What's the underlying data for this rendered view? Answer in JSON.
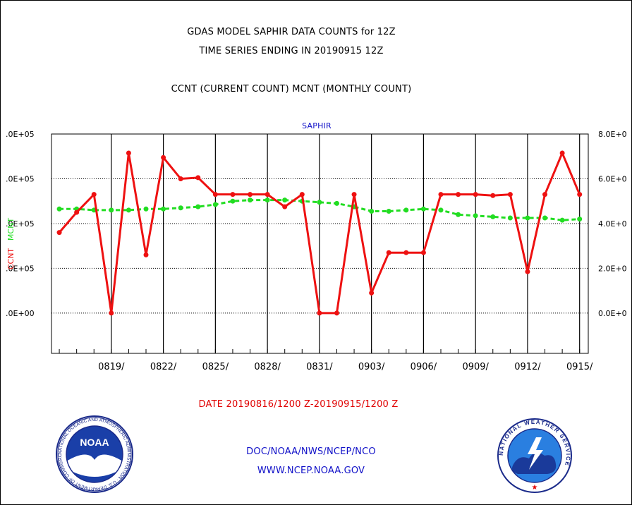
{
  "header": {
    "title_line1": "GDAS MODEL SAPHIR DATA COUNTS for 12Z",
    "title_line2": "TIME SERIES ENDING IN 20190915 12Z",
    "subtitle": "CCNT (CURRENT COUNT) MCNT (MONTHLY COUNT)",
    "panel_title": "SAPHIR"
  },
  "footer": {
    "date_range": "DATE 20190816/1200 Z-20190915/1200 Z",
    "org": "DOC/NOAA/NWS/NCEP/NCO",
    "url": "WWW.NCEP.NOAA.GOV",
    "left_logo_text": "NOAA",
    "left_logo_ring_text": "NATIONAL OCEANIC AND ATMOSPHERIC ADMINISTRATION · U.S. DEPARTMENT OF COMMERCE",
    "right_logo_ring_text": "NATIONAL WEATHER SERVICE"
  },
  "colors": {
    "ccnt": "#ee1111",
    "mcnt": "#22dd22",
    "text_blue": "#1010c8"
  },
  "chart_data": {
    "type": "line",
    "title": "SAPHIR",
    "ylabel_left_1": "CCNT",
    "ylabel_left_2": "MCNT",
    "ylim": [
      -180000,
      800000
    ],
    "yticks": [
      0,
      200000,
      400000,
      600000,
      800000
    ],
    "yticklabels_left": [
      ".0E+00",
      ".0E+05",
      ".0E+05",
      ".0E+05",
      ".0E+05"
    ],
    "yticklabels_right": [
      "0.0E+0",
      "2.0E+0",
      "4.0E+0",
      "6.0E+0",
      "8.0E+0"
    ],
    "x": [
      1,
      2,
      3,
      4,
      5,
      6,
      7,
      8,
      9,
      10,
      11,
      12,
      13,
      14,
      15,
      16,
      17,
      18,
      19,
      20,
      21,
      22,
      23,
      24,
      25,
      26,
      27,
      28,
      29,
      30,
      31
    ],
    "xlim": [
      0.55,
      31.5
    ],
    "xticks": [
      4,
      7,
      10,
      13,
      16,
      19,
      22,
      25,
      28,
      31
    ],
    "xticklabels": [
      "0819/",
      "0822/",
      "0825/",
      "0828/",
      "0831/",
      "0903/",
      "0906/",
      "0909/",
      "0912/",
      "0915/"
    ],
    "series": [
      {
        "name": "CCNT",
        "values": [
          360000,
          450000,
          530000,
          0,
          715000,
          260000,
          695000,
          600000,
          605000,
          530000,
          530000,
          530000,
          530000,
          475000,
          530000,
          0,
          0,
          530000,
          90000,
          270000,
          270000,
          270000,
          530000,
          530000,
          530000,
          525000,
          530000,
          185000,
          530000,
          715000,
          530000
        ]
      },
      {
        "name": "MCNT",
        "values": [
          465000,
          465000,
          460000,
          460000,
          460000,
          465000,
          465000,
          470000,
          475000,
          485000,
          500000,
          505000,
          505000,
          505000,
          500000,
          495000,
          490000,
          475000,
          455000,
          455000,
          460000,
          465000,
          460000,
          440000,
          435000,
          430000,
          425000,
          425000,
          425000,
          415000,
          420000
        ]
      }
    ],
    "grid": true
  }
}
